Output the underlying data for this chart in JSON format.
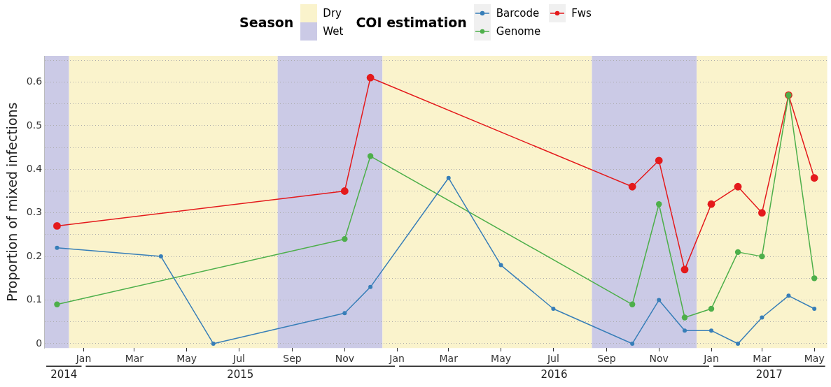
{
  "chart_data": {
    "type": "line",
    "ylabel": "Proportion of mixed infections",
    "legend_title": "COI estimation",
    "legend": "top",
    "marker": "circle",
    "line_style": "solid",
    "grid": "y",
    "xlim": [
      "2014-11-16",
      "2017-05-16"
    ],
    "ylim": [
      -0.01,
      0.66
    ],
    "xticks": [
      {
        "value": "2015-01-01",
        "label": "Jan"
      },
      {
        "value": "2015-03-01",
        "label": "Mar"
      },
      {
        "value": "2015-05-01",
        "label": "May"
      },
      {
        "value": "2015-07-01",
        "label": "Jul"
      },
      {
        "value": "2015-09-01",
        "label": "Sep"
      },
      {
        "value": "2015-11-01",
        "label": "Nov"
      },
      {
        "value": "2016-01-01",
        "label": "Jan"
      },
      {
        "value": "2016-03-01",
        "label": "Mar"
      },
      {
        "value": "2016-05-01",
        "label": "May"
      },
      {
        "value": "2016-07-01",
        "label": "Jul"
      },
      {
        "value": "2016-09-01",
        "label": "Sep"
      },
      {
        "value": "2016-11-01",
        "label": "Nov"
      },
      {
        "value": "2017-01-01",
        "label": "Jan"
      },
      {
        "value": "2017-03-01",
        "label": "Mar"
      },
      {
        "value": "2017-05-01",
        "label": "May"
      }
    ],
    "yticks": [
      0,
      {
        "value": 0.05,
        "label": null
      },
      0.1,
      {
        "value": 0.15,
        "label": null
      },
      0.2,
      {
        "value": 0.25,
        "label": null
      },
      0.3,
      {
        "value": 0.35,
        "label": null
      },
      0.4,
      {
        "value": 0.45,
        "label": null
      },
      0.5,
      {
        "value": 0.55,
        "label": null
      },
      0.6,
      {
        "value": 0.65,
        "label": null
      }
    ],
    "series": [
      {
        "name": "Barcode",
        "color": "#377eb8",
        "x": [
          "2014-12-01",
          "2015-04-01",
          "2015-06-01",
          "2015-11-01",
          "2015-12-01",
          "2016-03-01",
          "2016-05-01",
          "2016-07-01",
          "2016-10-01",
          "2016-11-01",
          "2016-12-01",
          "2017-01-01",
          "2017-02-01",
          "2017-03-01",
          "2017-04-01",
          "2017-05-01"
        ],
        "values": [
          0.22,
          0.2,
          0.0,
          0.07,
          0.13,
          0.38,
          0.18,
          0.08,
          0.0,
          0.1,
          0.03,
          0.03,
          0.0,
          0.06,
          0.11,
          0.08
        ]
      },
      {
        "name": "Genome",
        "color": "#4daf4a",
        "x": [
          "2014-12-01",
          "2015-11-01",
          "2015-12-01",
          "2016-10-01",
          "2016-11-01",
          "2016-12-01",
          "2017-01-01",
          "2017-02-01",
          "2017-03-01",
          "2017-04-01",
          "2017-05-01"
        ],
        "values": [
          0.09,
          0.24,
          0.43,
          0.09,
          0.32,
          0.06,
          0.08,
          0.21,
          0.2,
          0.57,
          0.15
        ]
      },
      {
        "name": "Fws",
        "color": "#e41a1c",
        "x": [
          "2014-12-01",
          "2015-11-01",
          "2015-12-01",
          "2016-10-01",
          "2016-11-01",
          "2016-12-01",
          "2017-01-01",
          "2017-02-01",
          "2017-03-01",
          "2017-04-01",
          "2017-05-01"
        ],
        "values": [
          0.27,
          0.35,
          0.61,
          0.36,
          0.42,
          0.17,
          0.32,
          0.36,
          0.3,
          0.57,
          0.38
        ]
      }
    ],
    "bands": [
      {
        "axis": "x",
        "from": "2014-11-16",
        "to": "2014-12-15",
        "color": "#cbcae6"
      },
      {
        "axis": "x",
        "from": "2014-12-15",
        "to": "2015-08-15",
        "label": "Dry",
        "color": "#faf3cc"
      },
      {
        "axis": "x",
        "from": "2015-08-15",
        "to": "2015-12-15",
        "label": "Wet",
        "color": "#cbcae6"
      },
      {
        "axis": "x",
        "from": "2015-12-15",
        "to": "2016-08-15",
        "color": "#faf3cc"
      },
      {
        "axis": "x",
        "from": "2016-08-15",
        "to": "2016-12-15",
        "color": "#cbcae6"
      },
      {
        "axis": "x",
        "from": "2016-12-15",
        "to": "2017-05-16",
        "color": "#faf3cc"
      }
    ],
    "annotations": [
      "Season",
      "2014",
      "2015",
      "2016",
      "2017"
    ]
  }
}
